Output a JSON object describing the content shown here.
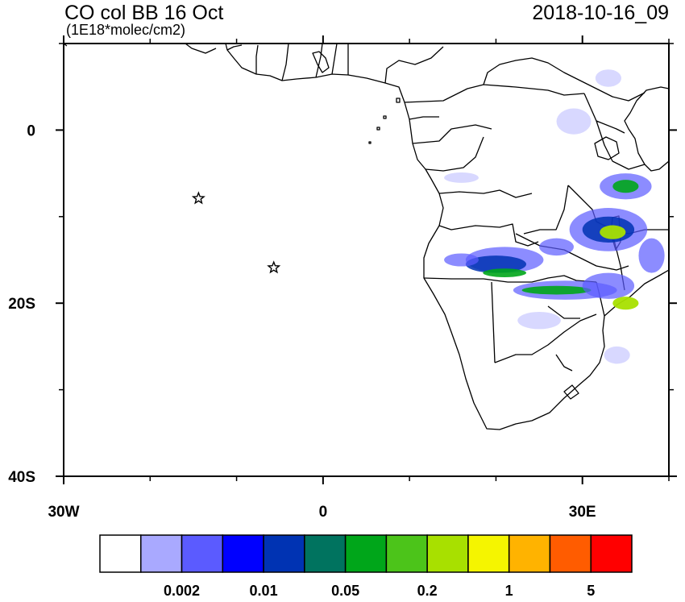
{
  "title": "CO col BB 16 Oct",
  "subtitle": "(1E18*molec/cm2)",
  "datetime": "2018-10-16_09",
  "chart_data": {
    "type": "heatmap",
    "map_extent": {
      "lon": [
        -30,
        40
      ],
      "lat": [
        -40,
        10
      ]
    },
    "x_ticks": [
      {
        "value": -30,
        "label": "30W"
      },
      {
        "value": 0,
        "label": "0"
      },
      {
        "value": 30,
        "label": "30E"
      }
    ],
    "y_ticks": [
      {
        "value": 0,
        "label": "0"
      },
      {
        "value": -20,
        "label": "20S"
      },
      {
        "value": -40,
        "label": "40S"
      }
    ],
    "minor_x": [
      -20,
      -10,
      10,
      20,
      40
    ],
    "minor_y": [
      10,
      -10,
      -30
    ],
    "stars": [
      {
        "lon": -14.4,
        "lat": -7.9
      },
      {
        "lon": -5.7,
        "lat": -15.9
      }
    ],
    "colorbar": {
      "colors": [
        "#ffffff",
        "#a9a9ff",
        "#5b5bff",
        "#0000ff",
        "#0033b3",
        "#00735f",
        "#00a61a",
        "#4cc41a",
        "#a8e000",
        "#f5f500",
        "#ffb300",
        "#ff5c00",
        "#ff0000"
      ],
      "labels": [
        {
          "after_index": 1,
          "text": "0.002"
        },
        {
          "after_index": 3,
          "text": "0.01"
        },
        {
          "after_index": 5,
          "text": "0.05"
        },
        {
          "after_index": 7,
          "text": "0.2"
        },
        {
          "after_index": 9,
          "text": "1"
        },
        {
          "after_index": 11,
          "text": "5"
        }
      ]
    },
    "plumes": [
      {
        "lon": 21,
        "lat": -15,
        "w": 9,
        "h": 3.0,
        "level": 1
      },
      {
        "lon": 20,
        "lat": -15.5,
        "w": 7,
        "h": 2.0,
        "level": 2
      },
      {
        "lon": 21,
        "lat": -16.5,
        "w": 5,
        "h": 1.0,
        "level": 3
      },
      {
        "lon": 28,
        "lat": -18.5,
        "w": 12,
        "h": 2.2,
        "level": 1
      },
      {
        "lon": 27,
        "lat": -18.5,
        "w": 8,
        "h": 1.0,
        "level": 3
      },
      {
        "lon": 33,
        "lat": -11.5,
        "w": 9,
        "h": 5,
        "level": 1
      },
      {
        "lon": 33,
        "lat": -11.5,
        "w": 6,
        "h": 3,
        "level": 2
      },
      {
        "lon": 33.5,
        "lat": -11.8,
        "w": 3,
        "h": 1.6,
        "level": 4
      },
      {
        "lon": 35,
        "lat": -6.5,
        "w": 6,
        "h": 3,
        "level": 1
      },
      {
        "lon": 35,
        "lat": -6.5,
        "w": 3,
        "h": 1.5,
        "level": 3
      },
      {
        "lon": 33,
        "lat": -18,
        "w": 6,
        "h": 3,
        "level": 1
      },
      {
        "lon": 35,
        "lat": -20,
        "w": 3,
        "h": 1.5,
        "level": 4
      },
      {
        "lon": 38,
        "lat": -14.5,
        "w": 3,
        "h": 4,
        "level": 1
      },
      {
        "lon": 16,
        "lat": -15,
        "w": 4,
        "h": 1.5,
        "level": 1
      },
      {
        "lon": 25,
        "lat": -22,
        "w": 5,
        "h": 2,
        "level": 0
      },
      {
        "lon": 29,
        "lat": 1,
        "w": 4,
        "h": 3,
        "level": 0
      },
      {
        "lon": 33,
        "lat": 6,
        "w": 3,
        "h": 2,
        "level": 0
      },
      {
        "lon": 34,
        "lat": -26,
        "w": 3,
        "h": 2,
        "level": 0
      },
      {
        "lon": 16,
        "lat": -5.5,
        "w": 4,
        "h": 1.2,
        "level": 0
      },
      {
        "lon": 27,
        "lat": -13.5,
        "w": 4,
        "h": 2,
        "level": 1
      }
    ]
  }
}
